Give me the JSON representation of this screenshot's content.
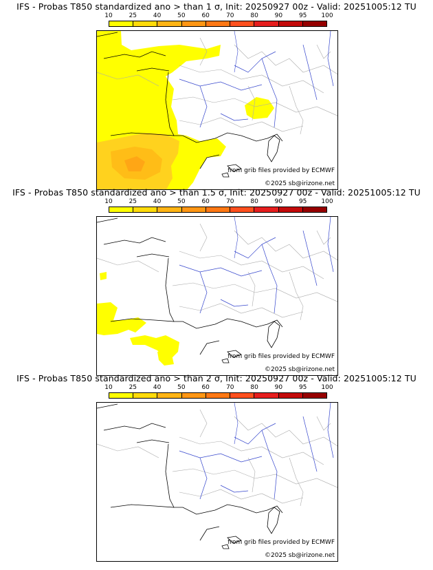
{
  "legend": {
    "ticks": [
      "10",
      "25",
      "40",
      "50",
      "60",
      "70",
      "80",
      "90",
      "95",
      "100"
    ],
    "colors": [
      "#ffff00",
      "#ffdb0a",
      "#ffb414",
      "#ff9614",
      "#ff7814",
      "#ff501e",
      "#e61e1e",
      "#c30a0a",
      "#960000",
      "#5a0000"
    ]
  },
  "panels": [
    {
      "title": "IFS - Probas T850  standardized ano > than 1 σ, Init: 20250927 00z - Valid: 20251005:12 TU",
      "credit": "from grib files provided by ECMWF",
      "copyright": "©2025 sb@irizone.net"
    },
    {
      "title": "IFS - Probas T850  standardized ano > than 1.5 σ, Init: 20250927 00z - Valid: 20251005:12 TU",
      "credit": "from grib files provided by ECMWF",
      "copyright": "©2025 sb@irizone.net"
    },
    {
      "title": "IFS - Probas T850  standardized ano > than 2 σ, Init: 20250927 00z - Valid: 20251005:12 TU",
      "credit": "from grib files provided by ECMWF",
      "copyright": "©2025 sb@irizone.net"
    }
  ]
}
